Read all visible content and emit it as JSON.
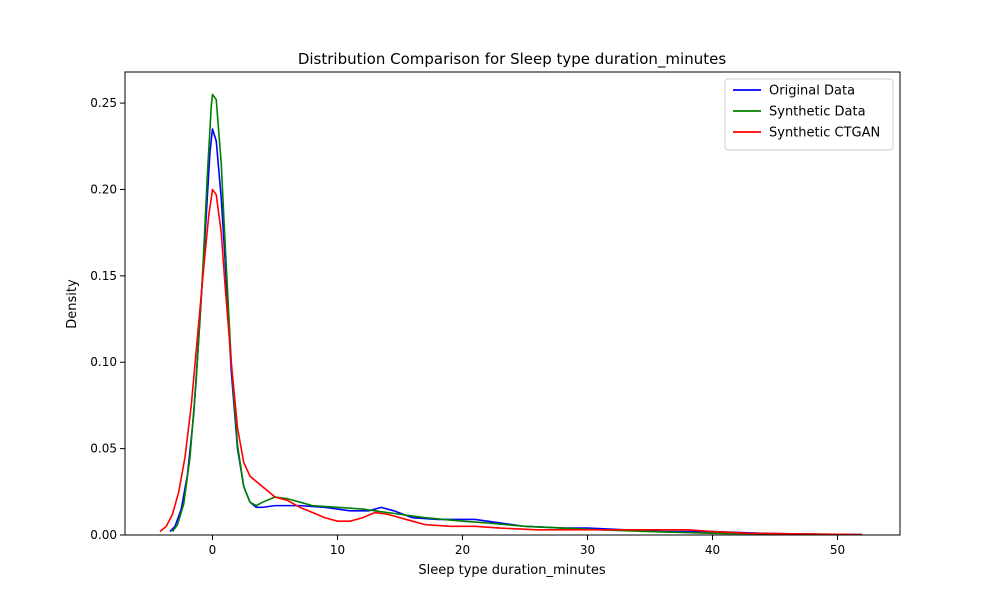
{
  "chart_data": {
    "type": "line",
    "title": "Distribution Comparison for Sleep type duration_minutes",
    "xlabel": "Sleep type duration_minutes",
    "ylabel": "Density",
    "xlim": [
      -7,
      55
    ],
    "ylim": [
      0,
      0.268
    ],
    "x_ticks": [
      0,
      10,
      20,
      30,
      40,
      50
    ],
    "x_tick_labels": [
      "0",
      "10",
      "20",
      "30",
      "40",
      "50"
    ],
    "y_ticks": [
      0,
      0.05,
      0.1,
      0.15,
      0.2,
      0.25
    ],
    "y_tick_labels": [
      "0.00",
      "0.05",
      "0.10",
      "0.15",
      "0.20",
      "0.25"
    ],
    "grid": false,
    "legend_position": "top-right",
    "series": [
      {
        "name": "Original Data",
        "color": "#0000ff",
        "points": [
          [
            -3.4,
            0.002
          ],
          [
            -3.0,
            0.005
          ],
          [
            -2.5,
            0.015
          ],
          [
            -2.0,
            0.035
          ],
          [
            -1.5,
            0.07
          ],
          [
            -1.0,
            0.125
          ],
          [
            -0.5,
            0.185
          ],
          [
            -0.2,
            0.222
          ],
          [
            0.0,
            0.235
          ],
          [
            0.3,
            0.228
          ],
          [
            0.7,
            0.195
          ],
          [
            1.0,
            0.16
          ],
          [
            1.5,
            0.095
          ],
          [
            2.0,
            0.05
          ],
          [
            2.5,
            0.028
          ],
          [
            3.0,
            0.019
          ],
          [
            3.5,
            0.016
          ],
          [
            4.0,
            0.016
          ],
          [
            5.0,
            0.017
          ],
          [
            7.0,
            0.017
          ],
          [
            9.0,
            0.016
          ],
          [
            11.0,
            0.014
          ],
          [
            12.5,
            0.014
          ],
          [
            13.5,
            0.016
          ],
          [
            14.5,
            0.014
          ],
          [
            16.0,
            0.01
          ],
          [
            18.0,
            0.009
          ],
          [
            20.0,
            0.009
          ],
          [
            21.0,
            0.009
          ],
          [
            23.0,
            0.007
          ],
          [
            25.0,
            0.005
          ],
          [
            28.0,
            0.004
          ],
          [
            30.0,
            0.004
          ],
          [
            33.0,
            0.003
          ],
          [
            36.0,
            0.002
          ],
          [
            40.0,
            0.002
          ],
          [
            44.0,
            0.001
          ],
          [
            48.0,
            0.0005
          ],
          [
            52.0,
            0.0002
          ]
        ]
      },
      {
        "name": "Synthetic Data",
        "color": "#008000",
        "points": [
          [
            -3.2,
            0.002
          ],
          [
            -2.8,
            0.006
          ],
          [
            -2.3,
            0.018
          ],
          [
            -1.8,
            0.045
          ],
          [
            -1.3,
            0.09
          ],
          [
            -0.8,
            0.15
          ],
          [
            -0.4,
            0.21
          ],
          [
            -0.1,
            0.248
          ],
          [
            0.0,
            0.255
          ],
          [
            0.3,
            0.252
          ],
          [
            0.7,
            0.215
          ],
          [
            1.0,
            0.17
          ],
          [
            1.5,
            0.1
          ],
          [
            2.0,
            0.052
          ],
          [
            2.5,
            0.028
          ],
          [
            3.0,
            0.019
          ],
          [
            3.5,
            0.017
          ],
          [
            4.0,
            0.019
          ],
          [
            5.0,
            0.022
          ],
          [
            6.0,
            0.021
          ],
          [
            7.0,
            0.019
          ],
          [
            8.0,
            0.017
          ],
          [
            10.0,
            0.016
          ],
          [
            12.0,
            0.015
          ],
          [
            13.0,
            0.014
          ],
          [
            15.0,
            0.012
          ],
          [
            17.0,
            0.01
          ],
          [
            20.0,
            0.008
          ],
          [
            22.0,
            0.007
          ],
          [
            25.0,
            0.005
          ],
          [
            28.0,
            0.004
          ],
          [
            31.0,
            0.003
          ],
          [
            35.0,
            0.002
          ],
          [
            40.0,
            0.001
          ],
          [
            45.0,
            0.0007
          ],
          [
            50.0,
            0.0004
          ],
          [
            52.0,
            0.0002
          ]
        ]
      },
      {
        "name": "Synthetic CTGAN",
        "color": "#ff0000",
        "points": [
          [
            -4.2,
            0.002
          ],
          [
            -3.7,
            0.005
          ],
          [
            -3.2,
            0.012
          ],
          [
            -2.7,
            0.025
          ],
          [
            -2.2,
            0.045
          ],
          [
            -1.7,
            0.075
          ],
          [
            -1.2,
            0.115
          ],
          [
            -0.7,
            0.155
          ],
          [
            -0.3,
            0.185
          ],
          [
            0.0,
            0.2
          ],
          [
            0.3,
            0.197
          ],
          [
            0.7,
            0.175
          ],
          [
            1.0,
            0.145
          ],
          [
            1.5,
            0.1
          ],
          [
            2.0,
            0.062
          ],
          [
            2.5,
            0.042
          ],
          [
            3.0,
            0.034
          ],
          [
            4.0,
            0.028
          ],
          [
            5.0,
            0.022
          ],
          [
            6.0,
            0.02
          ],
          [
            7.0,
            0.016
          ],
          [
            8.0,
            0.013
          ],
          [
            9.0,
            0.01
          ],
          [
            10.0,
            0.008
          ],
          [
            11.0,
            0.008
          ],
          [
            12.0,
            0.01
          ],
          [
            13.0,
            0.013
          ],
          [
            14.0,
            0.012
          ],
          [
            15.0,
            0.01
          ],
          [
            16.0,
            0.008
          ],
          [
            17.0,
            0.006
          ],
          [
            19.0,
            0.005
          ],
          [
            21.0,
            0.005
          ],
          [
            23.0,
            0.004
          ],
          [
            26.0,
            0.003
          ],
          [
            29.0,
            0.003
          ],
          [
            32.0,
            0.003
          ],
          [
            35.0,
            0.003
          ],
          [
            38.0,
            0.003
          ],
          [
            40.0,
            0.002
          ],
          [
            43.0,
            0.001
          ],
          [
            47.0,
            0.0006
          ],
          [
            52.0,
            0.0002
          ]
        ]
      }
    ]
  }
}
